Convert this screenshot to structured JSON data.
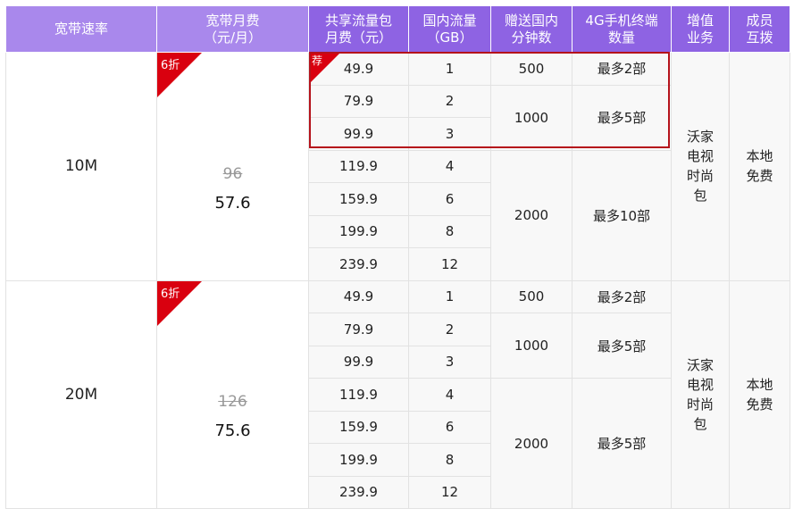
{
  "headers": [
    "宽带速率",
    "宽带月费\n（元/月）",
    "共享流量包\n月费（元）",
    "国内流量\n（GB）",
    "赠送国内\n分钟数",
    "4G手机终端\n数量",
    "增值\n业务",
    "成员\n互拨"
  ],
  "colors": {
    "header_light": "#a988ec",
    "header_dark": "#8e63e3",
    "discount_tag": "#d9000f",
    "recommend_border": "#b5121b",
    "group_divider": "#f0c84a"
  },
  "recommend_label": "荐",
  "groups": [
    {
      "speed": "10M",
      "discount": "6折",
      "original_price": "96",
      "price": "57.6",
      "packages": [
        {
          "fee": "49.9",
          "gb": "1"
        },
        {
          "fee": "79.9",
          "gb": "2"
        },
        {
          "fee": "99.9",
          "gb": "3"
        },
        {
          "fee": "119.9",
          "gb": "4"
        },
        {
          "fee": "159.9",
          "gb": "6"
        },
        {
          "fee": "199.9",
          "gb": "8"
        },
        {
          "fee": "239.9",
          "gb": "12"
        }
      ],
      "minutes": [
        {
          "value": "500",
          "rows": 1
        },
        {
          "value": "1000",
          "rows": 2
        },
        {
          "value": "2000",
          "rows": 4
        }
      ],
      "devices": [
        {
          "value": "最多2部",
          "rows": 1
        },
        {
          "value": "最多5部",
          "rows": 2
        },
        {
          "value": "最多10部",
          "rows": 4
        }
      ],
      "value_added": "沃家\n电视\n时尚\n包",
      "member_call": "本地\n免费"
    },
    {
      "speed": "20M",
      "discount": "6折",
      "original_price": "126",
      "price": "75.6",
      "packages": [
        {
          "fee": "49.9",
          "gb": "1"
        },
        {
          "fee": "79.9",
          "gb": "2"
        },
        {
          "fee": "99.9",
          "gb": "3"
        },
        {
          "fee": "119.9",
          "gb": "4"
        },
        {
          "fee": "159.9",
          "gb": "6"
        },
        {
          "fee": "199.9",
          "gb": "8"
        },
        {
          "fee": "239.9",
          "gb": "12"
        }
      ],
      "minutes": [
        {
          "value": "500",
          "rows": 1
        },
        {
          "value": "1000",
          "rows": 2
        },
        {
          "value": "2000",
          "rows": 4
        }
      ],
      "devices": [
        {
          "value": "最多2部",
          "rows": 1
        },
        {
          "value": "最多5部",
          "rows": 2
        },
        {
          "value": "最多5部",
          "rows": 4
        }
      ],
      "value_added": "沃家\n电视\n时尚\n包",
      "member_call": "本地\n免费"
    }
  ]
}
